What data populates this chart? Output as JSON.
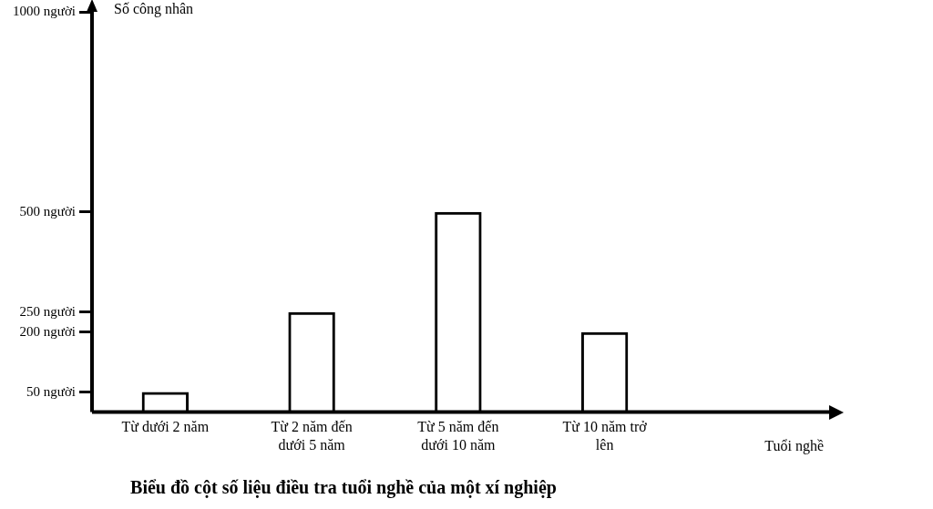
{
  "chart_data": {
    "type": "bar",
    "title": "Biểu đồ cột số liệu điều tra tuổi nghề của một xí nghiệp",
    "annotations": [
      "Tuổi nghề"
    ],
    "ylabel": "Số công nhân",
    "categories": [
      "Từ dưới 2 năm",
      "Từ 2 năm đến dưới 5 năm",
      "Từ 5 năm đến dưới 10 năm",
      "Từ 10 năm trở lên"
    ],
    "values": [
      50,
      250,
      500,
      200
    ],
    "color": "#000000",
    "ylim": [
      0,
      1000
    ],
    "yticks": [
      {
        "value": 50,
        "label": "50 người"
      },
      {
        "value": 200,
        "label": "200 người"
      },
      {
        "value": 250,
        "label": "250 người"
      },
      {
        "value": 500,
        "label": "500 người"
      },
      {
        "value": 1000,
        "label": "1000 người"
      }
    ],
    "grid": false,
    "legend": false
  }
}
